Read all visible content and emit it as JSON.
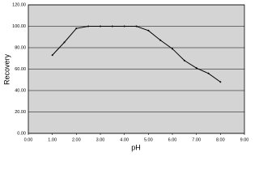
{
  "chart_data": {
    "type": "line",
    "xlabel": "pH",
    "ylabel": "Recovery",
    "x": [
      1.0,
      1.5,
      2.0,
      2.5,
      3.0,
      3.5,
      4.0,
      4.5,
      5.0,
      5.5,
      6.0,
      6.5,
      7.0,
      7.5,
      8.0
    ],
    "series": [
      {
        "color": "#000000",
        "values": [
          73,
          85,
          98,
          100,
          100,
          100,
          100,
          100,
          96,
          87,
          79,
          68,
          61,
          56,
          48
        ]
      }
    ],
    "xlim": [
      0,
      9
    ],
    "xticks": [
      {
        "value": 0,
        "label": "0.00"
      },
      {
        "value": 1,
        "label": "1.00"
      },
      {
        "value": 2,
        "label": "2.00"
      },
      {
        "value": 3,
        "label": "3.00"
      },
      {
        "value": 4,
        "label": "4.00"
      },
      {
        "value": 5,
        "label": "5.00"
      },
      {
        "value": 6,
        "label": "6.00"
      },
      {
        "value": 7,
        "label": "7.00"
      },
      {
        "value": 8,
        "label": "8.00"
      },
      {
        "value": 9,
        "label": "9.00"
      }
    ],
    "ylim": [
      0,
      120
    ],
    "yticks": [
      {
        "value": 0,
        "label": "0.00"
      },
      {
        "value": 20,
        "label": "20.00"
      },
      {
        "value": 40,
        "label": "40.00"
      },
      {
        "value": 60,
        "label": "60.00"
      },
      {
        "value": 80,
        "label": "80.00"
      },
      {
        "value": 100,
        "label": "100.00"
      },
      {
        "value": 120,
        "label": "120.00"
      }
    ],
    "grid": true
  }
}
